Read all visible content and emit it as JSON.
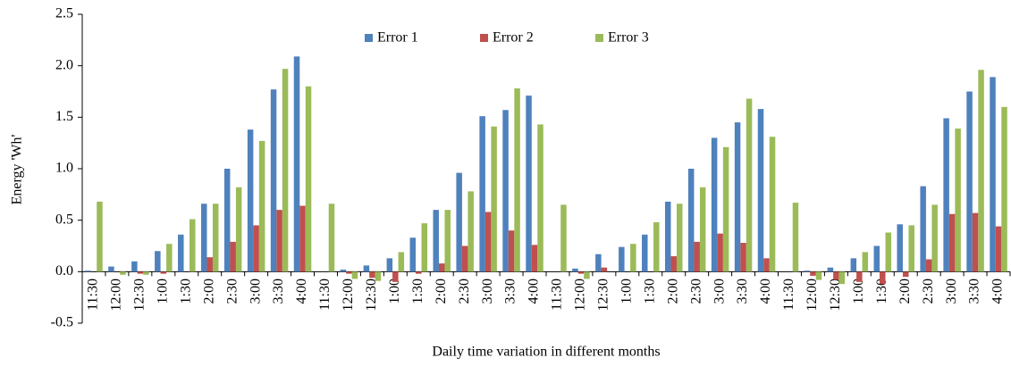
{
  "chart_data": {
    "type": "bar",
    "y_label": "Energy 'Wh'",
    "x_label": "Daily time variation in different months",
    "categories": [
      "11:30",
      "12:00",
      "12:30",
      "1:00",
      "1:30",
      "2:00",
      "2:30",
      "3:00",
      "3:30",
      "4:00",
      "11:30",
      "12:00",
      "12:30",
      "1:00",
      "1:30",
      "2:00",
      "2:30",
      "3:00",
      "3:30",
      "4:00",
      "11:30",
      "12:00",
      "12:30",
      "1:00",
      "1:30",
      "2:00",
      "2:30",
      "3:00",
      "3:30",
      "4:00",
      "11:30",
      "12:00",
      "12:30",
      "1:00",
      "1:30",
      "2:00",
      "2:30",
      "3:00",
      "3:30",
      "4:00"
    ],
    "series": [
      {
        "name": "Error 1",
        "color": "#4f81bd",
        "values": [
          0.01,
          0.05,
          0.1,
          0.2,
          0.36,
          0.66,
          1.0,
          1.38,
          1.77,
          2.09,
          0,
          0.02,
          0.06,
          0.13,
          0.33,
          0.6,
          0.96,
          1.51,
          1.57,
          1.71,
          0,
          0.03,
          0.17,
          0.24,
          0.36,
          0.68,
          1.0,
          1.3,
          1.45,
          1.58,
          0,
          0.01,
          0.04,
          0.13,
          0.25,
          0.46,
          0.83,
          1.49,
          1.75,
          1.89
        ]
      },
      {
        "name": "Error 2",
        "color": "#c0504d",
        "values": [
          0,
          0,
          -0.02,
          -0.02,
          0,
          0.14,
          0.29,
          0.45,
          0.6,
          0.64,
          0,
          -0.02,
          -0.06,
          -0.1,
          -0.02,
          0.08,
          0.25,
          0.58,
          0.4,
          0.26,
          0,
          -0.02,
          0.04,
          0,
          0,
          0.15,
          0.29,
          0.37,
          0.28,
          0.13,
          0,
          -0.04,
          -0.08,
          -0.1,
          -0.12,
          -0.05,
          0.12,
          0.56,
          0.57,
          0.44
        ]
      },
      {
        "name": "Error 3",
        "color": "#9bbb59",
        "values": [
          0.68,
          -0.03,
          -0.03,
          0.27,
          0.51,
          0.66,
          0.82,
          1.27,
          1.97,
          1.8,
          0.66,
          -0.07,
          -0.09,
          0.19,
          0.47,
          0.6,
          0.78,
          1.41,
          1.78,
          1.43,
          0.65,
          -0.07,
          0,
          0.27,
          0.48,
          0.66,
          0.82,
          1.21,
          1.68,
          1.31,
          0.67,
          -0.08,
          -0.12,
          0.19,
          0.38,
          0.45,
          0.65,
          1.39,
          1.96,
          1.6
        ]
      }
    ],
    "ylim": [
      -0.5,
      2.5
    ],
    "yticks": [
      -0.5,
      {
        "value": 0,
        "label": "0.0"
      },
      0.5,
      {
        "value": 1,
        "label": "1.0"
      },
      1.5,
      {
        "value": 2,
        "label": "2.0"
      },
      2.5
    ],
    "legend": "top"
  }
}
